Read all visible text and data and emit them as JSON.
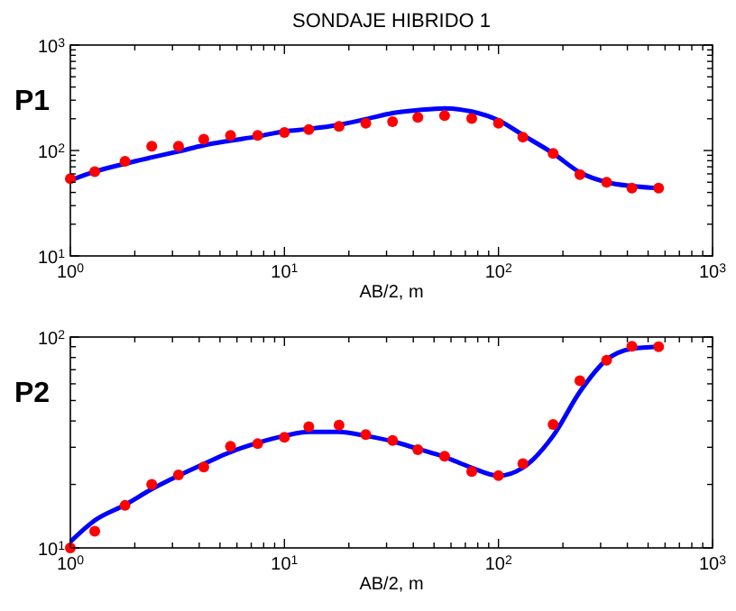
{
  "chart_data": [
    {
      "type": "line",
      "title": "SONDAJE HIBRIDO 1",
      "ylabel": "P1",
      "xlabel": "AB/2, m",
      "log": "xy",
      "xlim": [
        1,
        1000
      ],
      "ylim": [
        10,
        1000
      ],
      "xticks": [
        {
          "value": 1,
          "label": "10$^{0}$"
        },
        {
          "value": 2,
          "label": null
        },
        {
          "value": 3,
          "label": null
        },
        {
          "value": 4,
          "label": null
        },
        {
          "value": 5,
          "label": null
        },
        {
          "value": 6,
          "label": null
        },
        {
          "value": 7,
          "label": null
        },
        {
          "value": 8,
          "label": null
        },
        {
          "value": 9,
          "label": null
        },
        {
          "value": 10,
          "label": "10$^{1}$"
        },
        {
          "value": 20,
          "label": null
        },
        {
          "value": 30,
          "label": null
        },
        {
          "value": 40,
          "label": null
        },
        {
          "value": 50,
          "label": null
        },
        {
          "value": 60,
          "label": null
        },
        {
          "value": 70,
          "label": null
        },
        {
          "value": 80,
          "label": null
        },
        {
          "value": 90,
          "label": null
        },
        {
          "value": 100,
          "label": "10$^{2}$"
        },
        {
          "value": 200,
          "label": null
        },
        {
          "value": 300,
          "label": null
        },
        {
          "value": 400,
          "label": null
        },
        {
          "value": 500,
          "label": null
        },
        {
          "value": 600,
          "label": null
        },
        {
          "value": 700,
          "label": null
        },
        {
          "value": 800,
          "label": null
        },
        {
          "value": 900,
          "label": null
        },
        {
          "value": 1000,
          "label": "10$^{3}$"
        }
      ],
      "yticks": [
        {
          "value": 10,
          "label": "10$^{1}$"
        },
        {
          "value": 20,
          "label": null
        },
        {
          "value": 30,
          "label": null
        },
        {
          "value": 40,
          "label": null
        },
        {
          "value": 50,
          "label": null
        },
        {
          "value": 60,
          "label": null
        },
        {
          "value": 70,
          "label": null
        },
        {
          "value": 80,
          "label": null
        },
        {
          "value": 90,
          "label": null
        },
        {
          "value": 100,
          "label": "10$^{2}$"
        },
        {
          "value": 200,
          "label": null
        },
        {
          "value": 300,
          "label": null
        },
        {
          "value": 400,
          "label": null
        },
        {
          "value": 500,
          "label": null
        },
        {
          "value": 600,
          "label": null
        },
        {
          "value": 700,
          "label": null
        },
        {
          "value": 800,
          "label": null
        },
        {
          "value": 900,
          "label": null
        },
        {
          "value": 1000,
          "label": "10$^{3}$"
        }
      ],
      "x": [
        1,
        1.3,
        1.8,
        2.4,
        3.2,
        4.2,
        5.6,
        7.5,
        10,
        13,
        18,
        24,
        32,
        42,
        56,
        75,
        100,
        130,
        180,
        240,
        320,
        420,
        560
      ],
      "series": [
        {
          "color": "#0000ff",
          "marker": "none",
          "line_style": "solid",
          "values": [
            52,
            63,
            75,
            86,
            98,
            112,
            124,
            136,
            152,
            160,
            175,
            198,
            226,
            241,
            251,
            234,
            193,
            140,
            94,
            62,
            50,
            46,
            44
          ]
        },
        {
          "type": "scatter",
          "color": "#ff0000",
          "marker": "circle",
          "values": [
            54,
            63,
            79,
            110,
            110,
            128,
            139,
            139,
            148,
            158,
            169,
            181,
            188,
            206,
            214,
            201,
            181,
            134,
            94,
            59,
            50,
            44,
            44
          ]
        }
      ]
    },
    {
      "type": "line",
      "ylabel": "P2",
      "xlabel": "AB/2, m",
      "log": "xy",
      "xlim": [
        1,
        1000
      ],
      "ylim": [
        10,
        100
      ],
      "xticks": [
        {
          "value": 1,
          "label": "10$^{0}$"
        },
        {
          "value": 2,
          "label": null
        },
        {
          "value": 3,
          "label": null
        },
        {
          "value": 4,
          "label": null
        },
        {
          "value": 5,
          "label": null
        },
        {
          "value": 6,
          "label": null
        },
        {
          "value": 7,
          "label": null
        },
        {
          "value": 8,
          "label": null
        },
        {
          "value": 9,
          "label": null
        },
        {
          "value": 10,
          "label": "10$^{1}$"
        },
        {
          "value": 20,
          "label": null
        },
        {
          "value": 30,
          "label": null
        },
        {
          "value": 40,
          "label": null
        },
        {
          "value": 50,
          "label": null
        },
        {
          "value": 60,
          "label": null
        },
        {
          "value": 70,
          "label": null
        },
        {
          "value": 80,
          "label": null
        },
        {
          "value": 90,
          "label": null
        },
        {
          "value": 100,
          "label": "10$^{2}$"
        },
        {
          "value": 200,
          "label": null
        },
        {
          "value": 300,
          "label": null
        },
        {
          "value": 400,
          "label": null
        },
        {
          "value": 500,
          "label": null
        },
        {
          "value": 600,
          "label": null
        },
        {
          "value": 700,
          "label": null
        },
        {
          "value": 800,
          "label": null
        },
        {
          "value": 900,
          "label": null
        },
        {
          "value": 1000,
          "label": "10$^{3}$"
        }
      ],
      "yticks": [
        {
          "value": 10,
          "label": "10$^{1}$"
        },
        {
          "value": 20,
          "label": null
        },
        {
          "value": 30,
          "label": null
        },
        {
          "value": 40,
          "label": null
        },
        {
          "value": 50,
          "label": null
        },
        {
          "value": 60,
          "label": null
        },
        {
          "value": 70,
          "label": null
        },
        {
          "value": 80,
          "label": null
        },
        {
          "value": 90,
          "label": null
        },
        {
          "value": 100,
          "label": "10$^{2}$"
        }
      ],
      "x": [
        1,
        1.3,
        1.8,
        2.4,
        3.2,
        4.2,
        5.6,
        7.5,
        10,
        13,
        18,
        24,
        32,
        42,
        56,
        75,
        100,
        130,
        180,
        240,
        320,
        420,
        560
      ],
      "series": [
        {
          "color": "#0000ff",
          "marker": "none",
          "line_style": "solid",
          "values": [
            10.7,
            13.5,
            16,
            19,
            22,
            25,
            28.5,
            31.5,
            34,
            35.5,
            35.5,
            34,
            32,
            29.5,
            27,
            24,
            22,
            24,
            34,
            55,
            78,
            88,
            90
          ]
        },
        {
          "type": "scatter",
          "color": "#ff0000",
          "marker": "circle",
          "values": [
            10,
            12,
            15.9,
            20,
            22.2,
            24.2,
            30.3,
            31.2,
            33.5,
            37.6,
            38.2,
            34.5,
            32.3,
            29.2,
            27.2,
            23,
            22,
            25.1,
            38.5,
            62,
            77.6,
            90.4,
            90
          ]
        }
      ]
    }
  ]
}
